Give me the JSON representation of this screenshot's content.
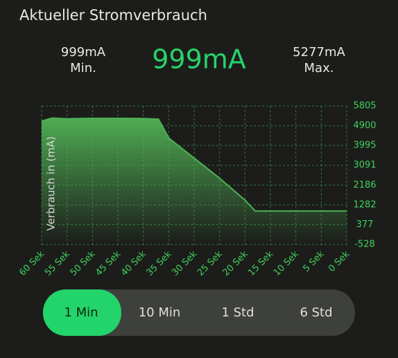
{
  "header": {
    "title": "Aktueller Stromverbrauch"
  },
  "stats": {
    "min": "999mA",
    "min_label": "Min.",
    "current": "999mA",
    "max": "5277mA",
    "max_label": "Max."
  },
  "chart_data": {
    "type": "area",
    "y_label": "Verbrauch in (mA)",
    "x": [
      60,
      58,
      55,
      50,
      45,
      40,
      37,
      35,
      30,
      25,
      20,
      18,
      0
    ],
    "series": [
      {
        "color": "#4fb055",
        "values": [
          5108,
          5250,
          5220,
          5240,
          5240,
          5230,
          5200,
          4340,
          3420,
          2500,
          1500,
          999,
          999
        ]
      }
    ],
    "xlim": [
      60,
      0
    ],
    "xticks": [
      {
        "value": 60,
        "label": "60 Sek"
      },
      {
        "value": 55,
        "label": "55 Sek"
      },
      {
        "value": 50,
        "label": "50 Sek"
      },
      {
        "value": 45,
        "label": "45 Sek"
      },
      {
        "value": 40,
        "label": "40 Sek"
      },
      {
        "value": 35,
        "label": "35 Sek"
      },
      {
        "value": 30,
        "label": "30 Sek"
      },
      {
        "value": 25,
        "label": "25 Sek"
      },
      {
        "value": 20,
        "label": "20 Sek"
      },
      {
        "value": 15,
        "label": "15 Sek"
      },
      {
        "value": 10,
        "label": "10 Sek"
      },
      {
        "value": 5,
        "label": "5 Sek"
      },
      {
        "value": 0,
        "label": "0 Sek"
      }
    ],
    "ylim": [
      -528,
      5805
    ],
    "yticks": [
      -528,
      377,
      1282,
      2186,
      3091,
      3995,
      4900,
      5805
    ],
    "grid": true
  },
  "range_buttons": [
    "1 Min",
    "10 Min",
    "1 Std",
    "6 Std"
  ]
}
